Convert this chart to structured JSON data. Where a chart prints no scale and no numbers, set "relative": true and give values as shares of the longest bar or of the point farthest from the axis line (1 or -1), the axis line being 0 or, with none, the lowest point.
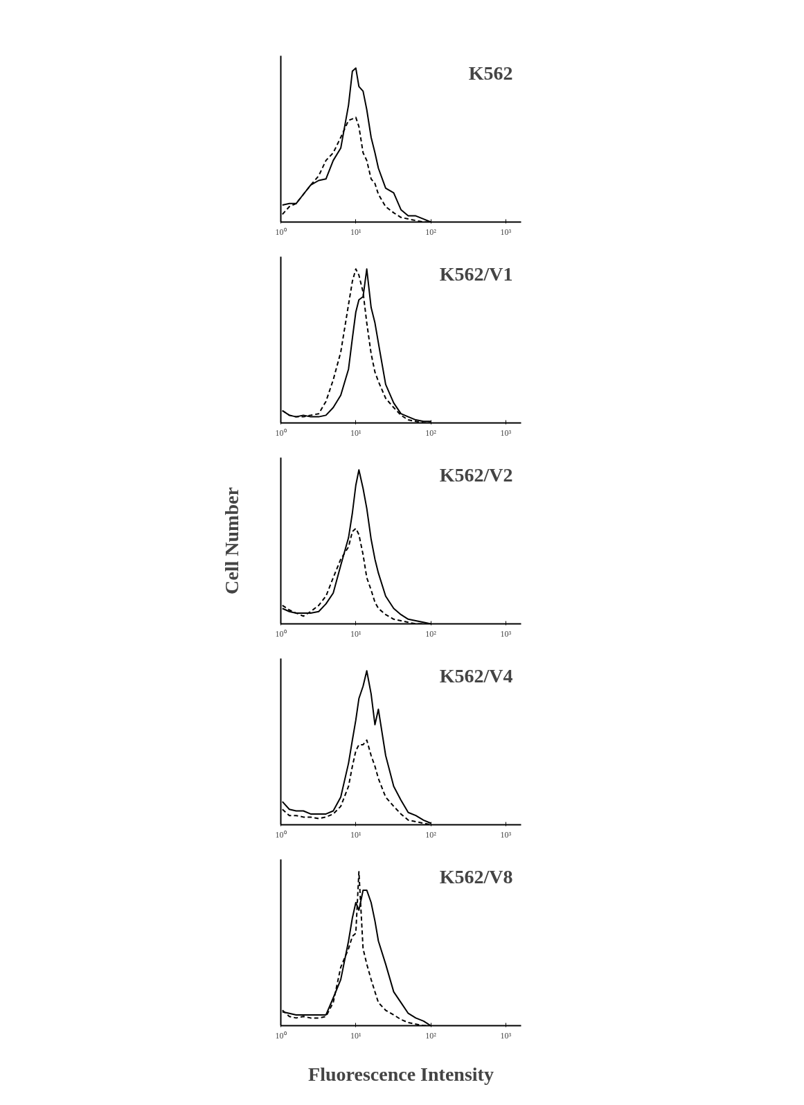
{
  "chart_data": [
    {
      "type": "line",
      "title": "K562",
      "relative": true,
      "log": "x",
      "tick_labels": "x",
      "xlim": [
        1,
        1600
      ],
      "xticks": [
        {
          "value": 1,
          "label": "10⁰"
        },
        {
          "value": 10,
          "label": "10¹"
        },
        {
          "value": 100,
          "label": "10²"
        },
        {
          "value": 1000,
          "label": "10³"
        }
      ],
      "x": [
        1.05,
        1.3,
        1.6,
        2,
        2.5,
        3.2,
        4,
        5,
        6.3,
        8,
        9,
        10,
        11,
        12.5,
        14,
        16,
        18,
        20,
        25,
        32,
        40,
        50,
        63,
        80,
        100
      ],
      "series": [
        {
          "color": "#000000",
          "line_style": "solid",
          "values": [
            0.11,
            0.12,
            0.12,
            0.18,
            0.24,
            0.27,
            0.28,
            0.4,
            0.48,
            0.76,
            0.98,
            1.0,
            0.88,
            0.85,
            0.73,
            0.55,
            0.45,
            0.35,
            0.22,
            0.19,
            0.08,
            0.04,
            0.04,
            0.02,
            0
          ]
        },
        {
          "color": "#000000",
          "line_style": "dashed",
          "values": [
            0.05,
            0.1,
            0.12,
            0.18,
            0.24,
            0.3,
            0.4,
            0.45,
            0.55,
            0.66,
            0.67,
            0.68,
            0.62,
            0.45,
            0.4,
            0.28,
            0.25,
            0.18,
            0.1,
            0.06,
            0.03,
            0.02,
            0.01,
            0,
            0
          ]
        }
      ]
    },
    {
      "type": "line",
      "title": "K562/V1",
      "relative": true,
      "log": "x",
      "tick_labels": "x",
      "xlim": [
        1,
        1600
      ],
      "xticks": [
        {
          "value": 1,
          "label": "10⁰"
        },
        {
          "value": 10,
          "label": "10¹"
        },
        {
          "value": 100,
          "label": "10²"
        },
        {
          "value": 1000,
          "label": "10³"
        }
      ],
      "x": [
        1.05,
        1.3,
        1.6,
        2,
        2.5,
        3.2,
        4,
        5,
        6.3,
        8,
        9,
        10,
        11,
        12.5,
        14,
        16,
        18,
        20,
        25,
        32,
        40,
        50,
        63,
        80,
        100
      ],
      "series": [
        {
          "color": "#000000",
          "line_style": "solid",
          "values": [
            0.08,
            0.05,
            0.04,
            0.05,
            0.04,
            0.04,
            0.05,
            0.1,
            0.18,
            0.35,
            0.55,
            0.72,
            0.8,
            0.82,
            1.0,
            0.75,
            0.65,
            0.52,
            0.25,
            0.13,
            0.06,
            0.04,
            0.02,
            0.01,
            0.01
          ]
        },
        {
          "color": "#000000",
          "line_style": "dashed",
          "values": [
            0.08,
            0.05,
            0.04,
            0.04,
            0.05,
            0.06,
            0.14,
            0.28,
            0.46,
            0.77,
            0.92,
            1.0,
            0.96,
            0.85,
            0.65,
            0.45,
            0.33,
            0.27,
            0.16,
            0.1,
            0.05,
            0.02,
            0.01,
            0,
            0
          ]
        }
      ]
    },
    {
      "type": "line",
      "title": "K562/V2",
      "ylabel": "Cell Number",
      "relative": true,
      "log": "x",
      "tick_labels": "x",
      "xlim": [
        1,
        1600
      ],
      "xticks": [
        {
          "value": 1,
          "label": "10⁰"
        },
        {
          "value": 10,
          "label": "10¹"
        },
        {
          "value": 100,
          "label": "10²"
        },
        {
          "value": 1000,
          "label": "10³"
        }
      ],
      "x": [
        1.05,
        1.3,
        1.6,
        2,
        2.5,
        3.2,
        4,
        5,
        6.3,
        8,
        9,
        10,
        11,
        12.5,
        14,
        16,
        18,
        20,
        25,
        32,
        40,
        50,
        63,
        80,
        100
      ],
      "series": [
        {
          "color": "#000000",
          "line_style": "solid",
          "values": [
            0.1,
            0.08,
            0.07,
            0.07,
            0.07,
            0.08,
            0.13,
            0.2,
            0.38,
            0.56,
            0.72,
            0.9,
            1.0,
            0.88,
            0.75,
            0.55,
            0.42,
            0.33,
            0.18,
            0.1,
            0.06,
            0.03,
            0.02,
            0.01,
            0
          ]
        },
        {
          "color": "#000000",
          "line_style": "dashed",
          "values": [
            0.12,
            0.09,
            0.07,
            0.05,
            0.08,
            0.12,
            0.18,
            0.3,
            0.42,
            0.5,
            0.6,
            0.62,
            0.58,
            0.45,
            0.3,
            0.22,
            0.14,
            0.1,
            0.06,
            0.03,
            0.02,
            0.01,
            0,
            0,
            0
          ]
        }
      ]
    },
    {
      "type": "line",
      "title": "K562/V4",
      "relative": true,
      "log": "x",
      "tick_labels": "x",
      "xlim": [
        1,
        1600
      ],
      "xticks": [
        {
          "value": 1,
          "label": "10⁰"
        },
        {
          "value": 10,
          "label": "10¹"
        },
        {
          "value": 100,
          "label": "10²"
        },
        {
          "value": 1000,
          "label": "10³"
        }
      ],
      "x": [
        1.05,
        1.3,
        1.6,
        2,
        2.5,
        3.2,
        4,
        5,
        6.3,
        8,
        9,
        10,
        11,
        12.5,
        14,
        16,
        18,
        20,
        25,
        32,
        40,
        50,
        63,
        80,
        100
      ],
      "series": [
        {
          "color": "#000000",
          "line_style": "solid",
          "values": [
            0.15,
            0.1,
            0.09,
            0.09,
            0.07,
            0.07,
            0.07,
            0.09,
            0.18,
            0.4,
            0.55,
            0.68,
            0.82,
            0.9,
            1.0,
            0.85,
            0.65,
            0.75,
            0.45,
            0.25,
            0.16,
            0.08,
            0.06,
            0.03,
            0.01
          ]
        },
        {
          "color": "#000000",
          "line_style": "dashed",
          "values": [
            0.1,
            0.06,
            0.06,
            0.05,
            0.05,
            0.04,
            0.05,
            0.07,
            0.12,
            0.25,
            0.38,
            0.48,
            0.52,
            0.52,
            0.55,
            0.45,
            0.38,
            0.3,
            0.18,
            0.12,
            0.07,
            0.03,
            0.02,
            0.01,
            0
          ]
        }
      ]
    },
    {
      "type": "line",
      "title": "K562/V8",
      "xlabel": "Fluorescence Intensity",
      "relative": true,
      "log": "x",
      "tick_labels": "x",
      "xlim": [
        1,
        1600
      ],
      "xticks": [
        {
          "value": 1,
          "label": "10⁰"
        },
        {
          "value": 10,
          "label": "10¹"
        },
        {
          "value": 100,
          "label": "10²"
        },
        {
          "value": 1000,
          "label": "10³"
        }
      ],
      "x": [
        1.05,
        1.3,
        1.6,
        2,
        2.5,
        3.2,
        4,
        5,
        6.3,
        8,
        9,
        10,
        11,
        12.5,
        14,
        16,
        18,
        20,
        25,
        32,
        40,
        50,
        63,
        80,
        100
      ],
      "series": [
        {
          "color": "#000000",
          "line_style": "solid",
          "values": [
            0.09,
            0.08,
            0.07,
            0.07,
            0.07,
            0.07,
            0.07,
            0.18,
            0.3,
            0.55,
            0.7,
            0.8,
            0.75,
            0.88,
            0.88,
            0.8,
            0.68,
            0.55,
            0.4,
            0.22,
            0.15,
            0.08,
            0.05,
            0.03,
            0
          ]
        },
        {
          "color": "#000000",
          "line_style": "dashed",
          "values": [
            0.1,
            0.06,
            0.05,
            0.06,
            0.05,
            0.05,
            0.06,
            0.15,
            0.38,
            0.5,
            0.58,
            0.6,
            1.0,
            0.5,
            0.4,
            0.3,
            0.22,
            0.15,
            0.1,
            0.07,
            0.04,
            0.02,
            0.01,
            0,
            0
          ]
        }
      ]
    }
  ]
}
